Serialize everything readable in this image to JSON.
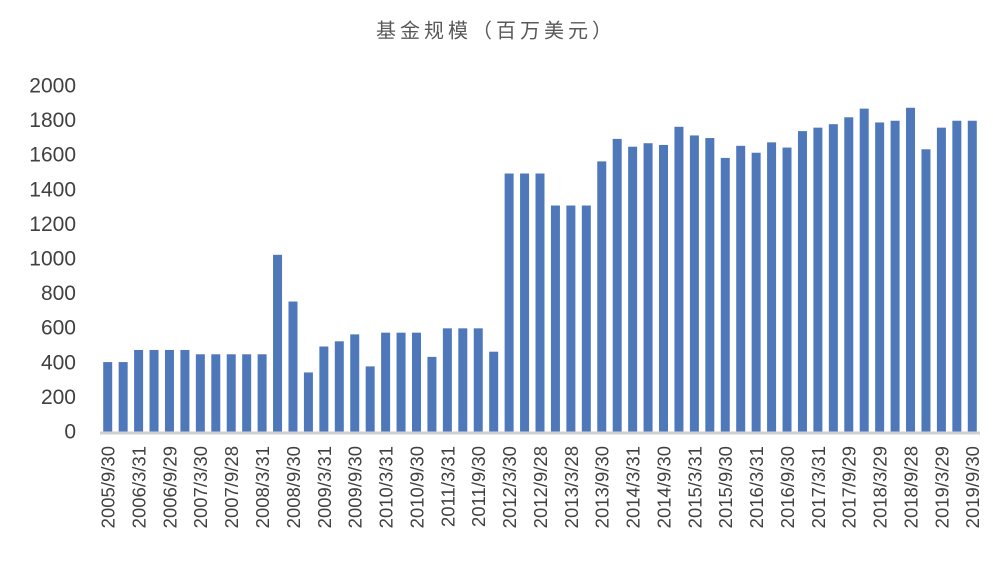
{
  "chart_data": {
    "type": "bar",
    "title": "基金规模（百万美元）",
    "categories": [
      "2005/9/30",
      null,
      "2006/3/31",
      null,
      "2006/9/29",
      null,
      "2007/3/30",
      null,
      "2007/9/28",
      null,
      "2008/3/31",
      null,
      "2008/9/30",
      null,
      "2009/3/31",
      null,
      "2009/9/30",
      null,
      "2010/3/31",
      null,
      "2010/9/30",
      null,
      "2011/3/31",
      null,
      "2011/9/30",
      null,
      "2012/3/30",
      null,
      "2012/9/28",
      null,
      "2013/3/28",
      null,
      "2013/9/30",
      null,
      "2014/3/31",
      null,
      "2014/9/30",
      null,
      "2015/3/31",
      null,
      "2015/9/30",
      null,
      "2016/3/31",
      null,
      "2016/9/30",
      null,
      "2017/3/31",
      null,
      "2017/9/29",
      null,
      "2018/3/29",
      null,
      "2018/9/28",
      null,
      "2019/3/29",
      null,
      "2019/9/30"
    ],
    "values": [
      410,
      410,
      480,
      480,
      480,
      480,
      455,
      455,
      455,
      455,
      455,
      1030,
      760,
      350,
      500,
      530,
      570,
      385,
      580,
      580,
      580,
      440,
      605,
      605,
      605,
      470,
      1500,
      1500,
      1500,
      1315,
      1315,
      1315,
      1570,
      1700,
      1655,
      1675,
      1665,
      1770,
      1720,
      1705,
      1590,
      1660,
      1620,
      1680,
      1650,
      1745,
      1765,
      1785,
      1825,
      1875,
      1795,
      1805,
      1880,
      1640,
      1765,
      1805,
      1805
    ],
    "color": "#4f78ba",
    "ylim": [
      0,
      2000
    ],
    "yticks": [
      0,
      200,
      400,
      600,
      800,
      1000,
      1200,
      1400,
      1600,
      1800,
      2000
    ],
    "grid": false
  }
}
